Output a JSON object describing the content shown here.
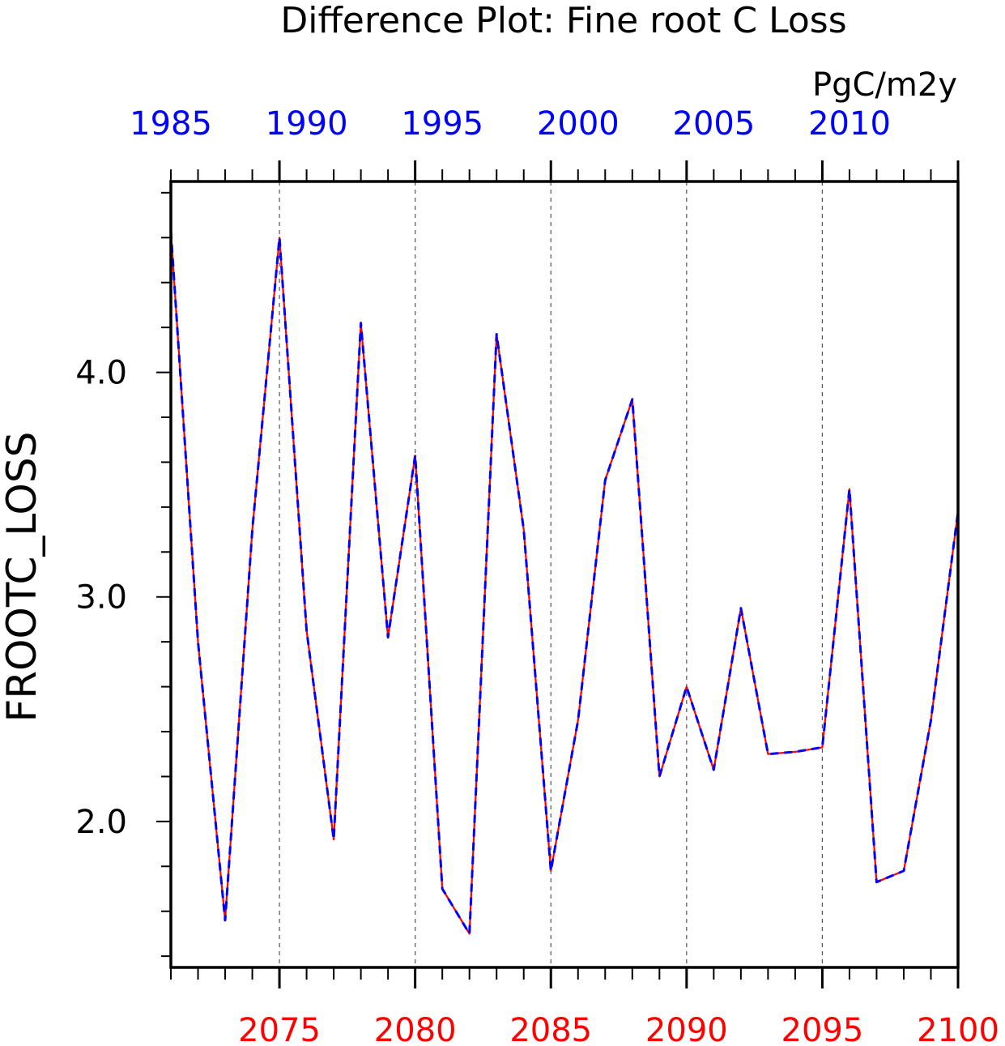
{
  "chart_data": {
    "type": "line",
    "title": "Difference Plot: Fine root C Loss",
    "units": "PgC/m2y",
    "ylabel": "FROOTC_LOSS",
    "xlabel": "",
    "xlim": [
      2071,
      2100
    ],
    "ylim": [
      1.35,
      4.85
    ],
    "x_ticks_bottom": [
      2075,
      2080,
      2085,
      2090,
      2095,
      2100
    ],
    "x_ticks_top": [
      1985,
      1990,
      1995,
      2000,
      2005,
      2010
    ],
    "y_ticks": [
      "2.0",
      "3.0",
      "4.0"
    ],
    "y_tick_values": [
      2.0,
      3.0,
      4.0
    ],
    "y_minor_ticks": [
      1.4,
      1.6,
      1.8,
      2.0,
      2.2,
      2.4,
      2.6,
      2.8,
      3.0,
      3.2,
      3.4,
      3.6,
      3.8,
      4.0,
      4.2,
      4.4,
      4.6,
      4.8
    ],
    "gridlines_x": [
      2075,
      2080,
      2085,
      2090,
      2095
    ],
    "grid": "vertical dashed at major bottom ticks",
    "x": [
      2071,
      2072,
      2073,
      2074,
      2075,
      2076,
      2077,
      2078,
      2079,
      2080,
      2081,
      2082,
      2083,
      2084,
      2085,
      2086,
      2087,
      2088,
      2089,
      2090,
      2091,
      2092,
      2093,
      2094,
      2095,
      2096,
      2097,
      2098,
      2099,
      2100
    ],
    "series": [
      {
        "color": "#ff0000",
        "style": "solid",
        "values": [
          4.63,
          2.8,
          1.56,
          3.3,
          4.6,
          2.85,
          1.92,
          4.22,
          2.82,
          3.63,
          1.7,
          1.5,
          4.17,
          3.3,
          1.78,
          2.45,
          3.52,
          3.88,
          2.2,
          2.6,
          2.23,
          2.95,
          2.3,
          2.31,
          2.33,
          3.48,
          1.73,
          1.78,
          2.45,
          3.38
        ]
      },
      {
        "color": "#0000ff",
        "style": "dashed",
        "values": [
          4.63,
          2.8,
          1.56,
          3.3,
          4.6,
          2.85,
          1.92,
          4.22,
          2.82,
          3.63,
          1.7,
          1.5,
          4.17,
          3.3,
          1.78,
          2.45,
          3.52,
          3.88,
          2.2,
          2.6,
          2.23,
          2.95,
          2.3,
          2.31,
          2.33,
          3.48,
          1.73,
          1.78,
          2.45,
          3.38
        ]
      }
    ],
    "colors": {
      "axis": "#000000",
      "bottom_ticks": "#ff0000",
      "top_ticks": "#0000ff",
      "grid": "#555555"
    }
  }
}
